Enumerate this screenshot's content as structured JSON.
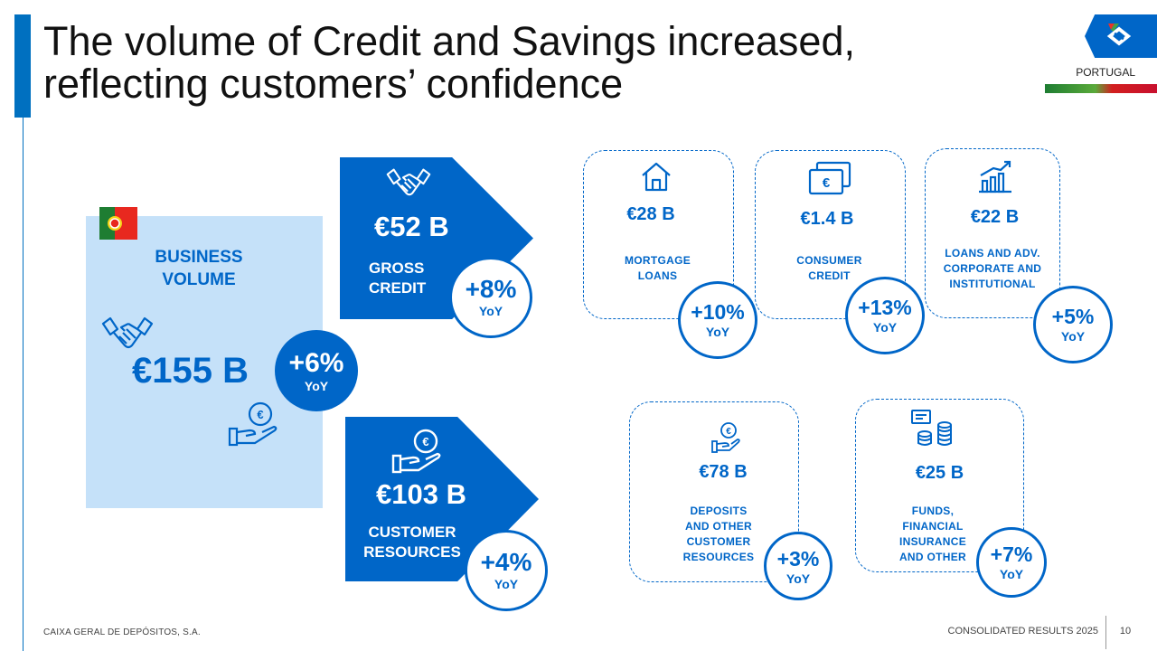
{
  "title_line1": "The volume of Credit and Savings increased,",
  "title_line2": "reflecting customers’ confidence",
  "header": {
    "country": "PORTUGAL"
  },
  "business": {
    "label_line1": "BUSINESS",
    "label_line2": "VOLUME",
    "value": "€155 B",
    "growth": "+6%",
    "growth_unit": "YoY"
  },
  "gross_credit": {
    "value": "€52 B",
    "label_line1": "GROSS",
    "label_line2": "CREDIT",
    "growth": "+8%",
    "growth_unit": "YoY"
  },
  "customer_resources": {
    "value": "€103 B",
    "label_line1": "CUSTOMER",
    "label_line2": "RESOURCES",
    "growth": "+4%",
    "growth_unit": "YoY"
  },
  "credit_cards": [
    {
      "value": "€28 B",
      "label_lines": [
        "MORTGAGE",
        "LOANS"
      ],
      "growth": "+10%",
      "growth_unit": "YoY",
      "icon": "house-icon"
    },
    {
      "value": "€1.4 B",
      "label_lines": [
        "CONSUMER",
        "CREDIT"
      ],
      "growth": "+13%",
      "growth_unit": "YoY",
      "icon": "banknotes-icon"
    },
    {
      "value": "€22 B",
      "label_lines": [
        "LOANS AND ADV.",
        "CORPORATE AND",
        "INSTITUTIONAL"
      ],
      "growth": "+5%",
      "growth_unit": "YoY",
      "icon": "growth-chart-icon"
    }
  ],
  "resource_cards": [
    {
      "value": "€78 B",
      "label_lines": [
        "DEPOSITS",
        "AND OTHER",
        "CUSTOMER",
        "RESOURCES"
      ],
      "growth": "+3%",
      "growth_unit": "YoY",
      "icon": "coin-hand-icon"
    },
    {
      "value": "€25 B",
      "label_lines": [
        "FUNDS,",
        "FINANCIAL",
        "INSURANCE",
        "AND OTHER"
      ],
      "growth": "+7%",
      "growth_unit": "YoY",
      "icon": "coin-stack-icon"
    }
  ],
  "footer": {
    "company": "CAIXA GERAL DE DEPÓSITOS, S.A.",
    "report": "CONSOLIDATED RESULTS 2025",
    "page": "10"
  },
  "colors": {
    "brand_blue": "#0066c8",
    "panel_blue": "#c5e1f9"
  }
}
